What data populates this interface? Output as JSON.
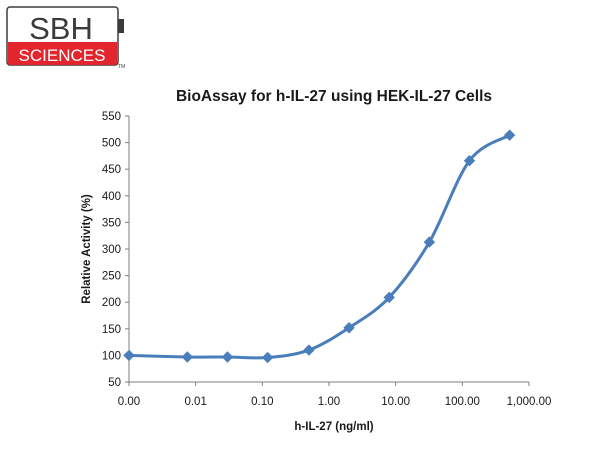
{
  "logo": {
    "line1": "SBH",
    "line2": "SCIENCES",
    "tm": "TM",
    "colors": {
      "red": "#e3262e",
      "dark": "#3b3b3b"
    }
  },
  "chart_data": {
    "type": "line",
    "title": "BioAssay for h-IL-27 using HEK-IL-27 Cells",
    "xlabel": "h-IL-27 (ng/ml)",
    "ylabel": "Relative Activity  (%)",
    "x_scale": "log",
    "x_ticks": [
      "0.00",
      "0.01",
      "0.10",
      "1.00",
      "10.00",
      "100.00",
      "1,000.00"
    ],
    "x_tick_values": [
      0.001,
      0.01,
      0.1,
      1,
      10,
      100,
      1000
    ],
    "xlim": [
      0.001,
      1000
    ],
    "ylim": [
      50,
      550
    ],
    "y_ticks": [
      "50",
      "100",
      "150",
      "200",
      "250",
      "300",
      "350",
      "400",
      "450",
      "500",
      "550"
    ],
    "y_tick_values": [
      50,
      100,
      150,
      200,
      250,
      300,
      350,
      400,
      450,
      500,
      550
    ],
    "grid": false,
    "series": [
      {
        "color": "#4a7ebb",
        "marker": "diamond",
        "smooth": true,
        "points": [
          {
            "x": 0.001,
            "y": 100
          },
          {
            "x": 0.0075,
            "y": 97
          },
          {
            "x": 0.03,
            "y": 97
          },
          {
            "x": 0.12,
            "y": 96
          },
          {
            "x": 0.5,
            "y": 110
          },
          {
            "x": 2,
            "y": 152
          },
          {
            "x": 8,
            "y": 209
          },
          {
            "x": 32,
            "y": 313
          },
          {
            "x": 128,
            "y": 466
          },
          {
            "x": 512,
            "y": 514
          }
        ]
      }
    ]
  }
}
